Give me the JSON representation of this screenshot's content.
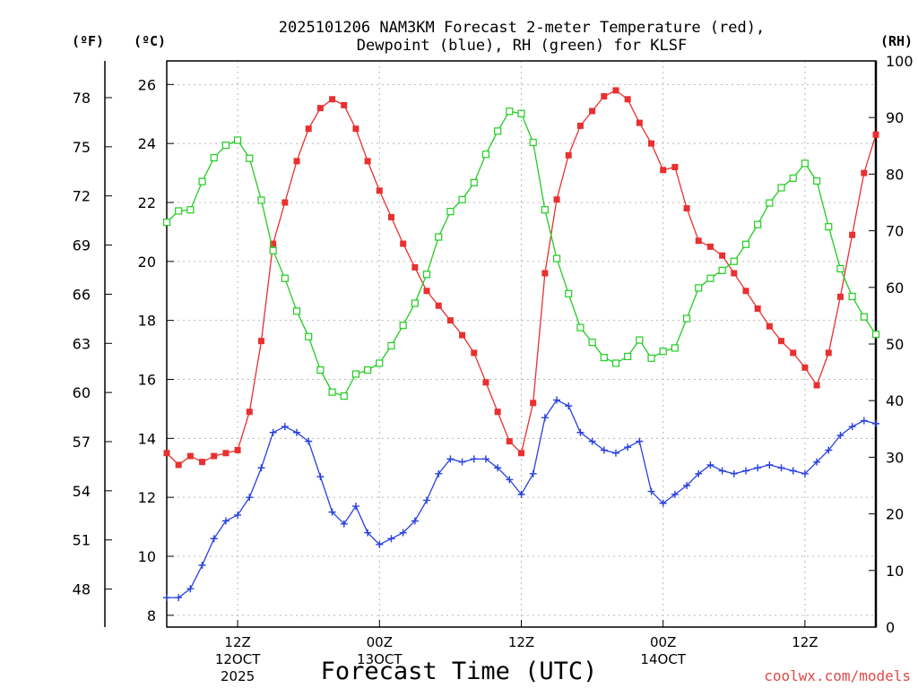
{
  "chart_data": {
    "type": "line",
    "title_line1": "2025101206 NAM3KM Forecast 2-meter Temperature (red),",
    "title_line2": "Dewpoint (blue), RH (green) for KLSF",
    "left_unit_f": "(ºF)",
    "left_unit_c": "(ºC)",
    "right_unit": "(RH)",
    "xlabel": "Forecast Time (UTC)",
    "credit": "coolwx.com/models",
    "x_range_hours": [
      1,
      61
    ],
    "celsius_range": [
      7.6,
      26.8
    ],
    "celsius_ticks": [
      8,
      10,
      12,
      14,
      16,
      18,
      20,
      22,
      24,
      26
    ],
    "fahrenheit_ticks": [
      48,
      51,
      54,
      57,
      60,
      63,
      66,
      69,
      72,
      75,
      78
    ],
    "rh_range": [
      0,
      100
    ],
    "rh_ticks": [
      0,
      10,
      20,
      30,
      40,
      50,
      60,
      70,
      80,
      90,
      100
    ],
    "x_ticks": [
      {
        "hour": 7,
        "line1": "12Z",
        "line2": "12OCT",
        "line3": "2025"
      },
      {
        "hour": 19,
        "line1": "00Z",
        "line2": "13OCT",
        "line3": ""
      },
      {
        "hour": 31,
        "line1": "12Z",
        "line2": "",
        "line3": ""
      },
      {
        "hour": 43,
        "line1": "00Z",
        "line2": "14OCT",
        "line3": ""
      },
      {
        "hour": 55,
        "line1": "12Z",
        "line2": "",
        "line3": ""
      }
    ],
    "hours": [
      1,
      2,
      3,
      4,
      5,
      6,
      7,
      8,
      9,
      10,
      11,
      12,
      13,
      14,
      15,
      16,
      17,
      18,
      19,
      20,
      21,
      22,
      23,
      24,
      25,
      26,
      27,
      28,
      29,
      30,
      31,
      32,
      33,
      34,
      35,
      36,
      37,
      38,
      39,
      40,
      41,
      42,
      43,
      44,
      45,
      46,
      47,
      48,
      49,
      50,
      51,
      52,
      53,
      54,
      55,
      56,
      57,
      58,
      59,
      60,
      61
    ],
    "series": [
      {
        "name": "2-meter Temperature",
        "unit": "C",
        "color": "#e83030",
        "marker": "filled-square",
        "values": [
          13.5,
          13.1,
          13.4,
          13.2,
          13.4,
          13.5,
          13.6,
          14.9,
          17.3,
          20.6,
          22.0,
          23.4,
          24.5,
          25.2,
          25.5,
          25.3,
          24.5,
          23.4,
          22.4,
          21.5,
          20.6,
          19.8,
          19.0,
          18.5,
          18.0,
          17.5,
          16.9,
          15.9,
          14.9,
          13.9,
          13.5,
          15.2,
          19.6,
          22.1,
          23.6,
          24.6,
          25.1,
          25.6,
          25.8,
          25.5,
          24.7,
          24.0,
          23.1,
          23.2,
          21.8,
          20.7,
          20.5,
          20.2,
          19.6,
          19.0,
          18.4,
          17.8,
          17.3,
          16.9,
          16.4,
          15.8,
          16.9,
          18.8,
          20.9,
          23.0,
          24.3
        ]
      },
      {
        "name": "Dewpoint",
        "unit": "C",
        "color": "#2840e0",
        "marker": "plus",
        "values": [
          8.6,
          8.6,
          8.9,
          9.7,
          10.6,
          11.2,
          11.4,
          12.0,
          13.0,
          14.2,
          14.4,
          14.2,
          13.9,
          12.7,
          11.5,
          11.1,
          11.7,
          10.8,
          10.4,
          10.6,
          10.8,
          11.2,
          11.9,
          12.8,
          13.3,
          13.2,
          13.3,
          13.3,
          13.0,
          12.6,
          12.1,
          12.8,
          14.7,
          15.3,
          15.1,
          14.2,
          13.9,
          13.6,
          13.5,
          13.7,
          13.9,
          12.2,
          11.8,
          12.1,
          12.4,
          12.8,
          13.1,
          12.9,
          12.8,
          12.9,
          13.0,
          13.1,
          13.0,
          12.9,
          12.8,
          13.2,
          13.6,
          14.1,
          14.4,
          14.6,
          14.5
        ]
      },
      {
        "name": "RH",
        "unit": "%",
        "color": "#22cc22",
        "marker": "open-square",
        "values": [
          71.5,
          73.5,
          73.7,
          78.7,
          82.9,
          85.1,
          86.0,
          82.8,
          75.4,
          66.5,
          61.6,
          55.8,
          51.3,
          45.4,
          41.5,
          40.8,
          44.7,
          45.4,
          46.6,
          49.7,
          53.3,
          57.2,
          62.3,
          68.9,
          73.4,
          75.5,
          78.5,
          83.5,
          87.6,
          91.1,
          90.7,
          85.6,
          73.7,
          65.1,
          58.9,
          52.9,
          50.3,
          47.6,
          46.6,
          47.8,
          50.7,
          47.5,
          48.7,
          49.3,
          54.5,
          59.9,
          61.6,
          63.0,
          64.6,
          67.6,
          71.1,
          74.9,
          77.6,
          79.3,
          81.9,
          78.8,
          70.7,
          63.3,
          58.4,
          54.8,
          51.7
        ]
      }
    ]
  }
}
